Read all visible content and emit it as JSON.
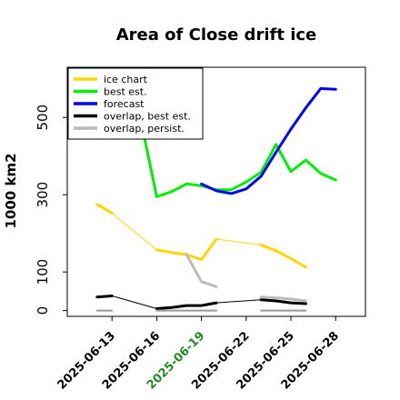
{
  "chart_data": {
    "type": "line",
    "title": "Area of Close drift ice",
    "ylabel": "1000 km2",
    "xlabel": "",
    "ylim": [
      -15,
      630
    ],
    "xlim": [
      "2025-06-10",
      "2025-06-30"
    ],
    "yticks": [
      0,
      100,
      300,
      500
    ],
    "xticks": [
      {
        "date": "2025-06-13",
        "label": "2025-06-13",
        "color": "#000000"
      },
      {
        "date": "2025-06-16",
        "label": "2025-06-16",
        "color": "#000000"
      },
      {
        "date": "2025-06-19",
        "label": "2025-06-19",
        "color": "#228b22"
      },
      {
        "date": "2025-06-22",
        "label": "2025-06-22",
        "color": "#000000"
      },
      {
        "date": "2025-06-25",
        "label": "2025-06-25",
        "color": "#000000"
      },
      {
        "date": "2025-06-28",
        "label": "2025-06-28",
        "color": "#000000"
      }
    ],
    "legend_position": "top-left",
    "grid": false,
    "series": [
      {
        "name": "ice chart",
        "color": "#ffd700",
        "segments": [
          {
            "width": 3,
            "points": [
              [
                "2025-06-12",
                275
              ],
              [
                "2025-06-13",
                252
              ]
            ]
          },
          {
            "width": 1,
            "points": [
              [
                "2025-06-13",
                252
              ],
              [
                "2025-06-16",
                157
              ],
              [
                "2025-06-17",
                150
              ],
              [
                "2025-06-18",
                145
              ],
              [
                "2025-06-19",
                132
              ],
              [
                "2025-06-20",
                185
              ],
              [
                "2025-06-23",
                170
              ]
            ]
          },
          {
            "width": 3,
            "points": [
              [
                "2025-06-16",
                157
              ],
              [
                "2025-06-17",
                150
              ],
              [
                "2025-06-18",
                145
              ],
              [
                "2025-06-19",
                132
              ],
              [
                "2025-06-20",
                185
              ]
            ]
          },
          {
            "width": 3,
            "points": [
              [
                "2025-06-23",
                170
              ],
              [
                "2025-06-24",
                155
              ],
              [
                "2025-06-25",
                135
              ],
              [
                "2025-06-26",
                112
              ]
            ]
          }
        ]
      },
      {
        "name": "best est.",
        "color": "#00ee00",
        "segments": [
          {
            "width": 3,
            "points": [
              [
                "2025-06-15",
                480
              ],
              [
                "2025-06-16",
                295
              ],
              [
                "2025-06-17",
                308
              ],
              [
                "2025-06-18",
                328
              ],
              [
                "2025-06-19",
                323
              ],
              [
                "2025-06-20",
                313
              ],
              [
                "2025-06-21",
                313
              ],
              [
                "2025-06-22",
                333
              ],
              [
                "2025-06-23",
                358
              ],
              [
                "2025-06-24",
                430
              ],
              [
                "2025-06-25",
                360
              ],
              [
                "2025-06-26",
                390
              ],
              [
                "2025-06-27",
                355
              ],
              [
                "2025-06-28",
                338
              ]
            ]
          }
        ]
      },
      {
        "name": "forecast",
        "color": "#0000ff",
        "segments": [
          {
            "width": 3,
            "points": [
              [
                "2025-06-19",
                328
              ],
              [
                "2025-06-20",
                310
              ],
              [
                "2025-06-21",
                303
              ],
              [
                "2025-06-22",
                315
              ],
              [
                "2025-06-23",
                348
              ],
              [
                "2025-06-24",
                410
              ],
              [
                "2025-06-25",
                470
              ],
              [
                "2025-06-26",
                525
              ],
              [
                "2025-06-27",
                575
              ],
              [
                "2025-06-28",
                573
              ]
            ]
          }
        ]
      },
      {
        "name": "overlap, best est.",
        "color": "#000000",
        "segments": [
          {
            "width": 3,
            "points": [
              [
                "2025-06-12",
                35
              ],
              [
                "2025-06-13",
                38
              ]
            ]
          },
          {
            "width": 1,
            "points": [
              [
                "2025-06-13",
                38
              ],
              [
                "2025-06-16",
                5
              ],
              [
                "2025-06-17",
                8
              ],
              [
                "2025-06-18",
                13
              ],
              [
                "2025-06-19",
                13
              ],
              [
                "2025-06-20",
                20
              ],
              [
                "2025-06-23",
                28
              ]
            ]
          },
          {
            "width": 3,
            "points": [
              [
                "2025-06-16",
                5
              ],
              [
                "2025-06-17",
                8
              ],
              [
                "2025-06-18",
                13
              ],
              [
                "2025-06-19",
                13
              ],
              [
                "2025-06-20",
                20
              ]
            ]
          },
          {
            "width": 3,
            "points": [
              [
                "2025-06-23",
                28
              ],
              [
                "2025-06-24",
                25
              ],
              [
                "2025-06-25",
                20
              ],
              [
                "2025-06-26",
                18
              ]
            ]
          }
        ]
      },
      {
        "name": "overlap, persist.",
        "color": "#bbbbbb",
        "segments": [
          {
            "width": 3,
            "points": [
              [
                "2025-06-18",
                145
              ],
              [
                "2025-06-19",
                75
              ],
              [
                "2025-06-20",
                62
              ]
            ]
          },
          {
            "width": 3,
            "points": [
              [
                "2025-06-23",
                35
              ],
              [
                "2025-06-24",
                33
              ],
              [
                "2025-06-25",
                30
              ],
              [
                "2025-06-26",
                25
              ]
            ]
          }
        ]
      },
      {
        "name": "",
        "color": "#999999",
        "segments": [
          {
            "width": 2,
            "points": [
              [
                "2025-06-12",
                0
              ],
              [
                "2025-06-13",
                0
              ]
            ]
          },
          {
            "width": 2,
            "points": [
              [
                "2025-06-16",
                0
              ],
              [
                "2025-06-20",
                0
              ]
            ]
          },
          {
            "width": 2,
            "points": [
              [
                "2025-06-23",
                0
              ],
              [
                "2025-06-26",
                0
              ]
            ]
          }
        ]
      }
    ]
  }
}
